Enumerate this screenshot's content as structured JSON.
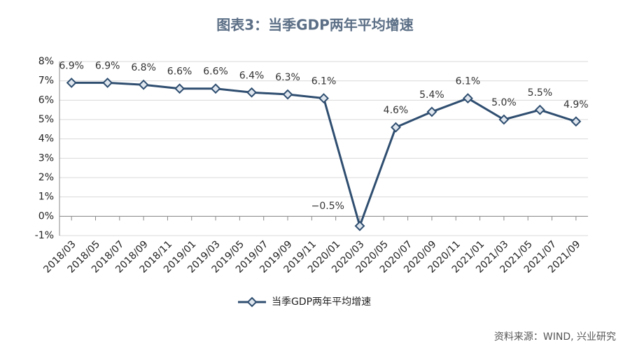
{
  "chart_data": {
    "type": "line",
    "title": "图表3：当季GDP两年平均增速",
    "x": [
      0,
      1.5,
      3,
      4.5,
      6,
      7.5,
      9,
      10.5,
      12,
      13.5,
      15,
      16.5,
      18,
      19.5,
      21
    ],
    "xlim": [
      -0.5,
      21.5
    ],
    "xticks": [
      {
        "value": 0,
        "label": "2018/03"
      },
      {
        "value": 1,
        "label": "2018/05"
      },
      {
        "value": 2,
        "label": "2018/07"
      },
      {
        "value": 3,
        "label": "2018/09"
      },
      {
        "value": 4,
        "label": "2018/11"
      },
      {
        "value": 5,
        "label": "2019/01"
      },
      {
        "value": 6,
        "label": "2019/03"
      },
      {
        "value": 7,
        "label": "2019/05"
      },
      {
        "value": 8,
        "label": "2019/07"
      },
      {
        "value": 9,
        "label": "2019/09"
      },
      {
        "value": 10,
        "label": "2019/11"
      },
      {
        "value": 11,
        "label": "2020/01"
      },
      {
        "value": 12,
        "label": "2020/03"
      },
      {
        "value": 13,
        "label": "2020/05"
      },
      {
        "value": 14,
        "label": "2020/07"
      },
      {
        "value": 15,
        "label": "2020/09"
      },
      {
        "value": 16,
        "label": "2020/11"
      },
      {
        "value": 17,
        "label": "2021/01"
      },
      {
        "value": 18,
        "label": "2021/03"
      },
      {
        "value": 19,
        "label": "2021/05"
      },
      {
        "value": 20,
        "label": "2021/07"
      },
      {
        "value": 21,
        "label": "2021/09"
      }
    ],
    "ylim": [
      -1,
      8
    ],
    "yticks": [
      {
        "value": -1,
        "label": "-1%"
      },
      {
        "value": 0,
        "label": "0%"
      },
      {
        "value": 1,
        "label": "1%"
      },
      {
        "value": 2,
        "label": "2%"
      },
      {
        "value": 3,
        "label": "3%"
      },
      {
        "value": 4,
        "label": "4%"
      },
      {
        "value": 5,
        "label": "5%"
      },
      {
        "value": 6,
        "label": "6%"
      },
      {
        "value": 7,
        "label": "7%"
      },
      {
        "value": 8,
        "label": "8%"
      }
    ],
    "grid": true,
    "legend": "bottom",
    "series": [
      {
        "name": "当季GDP两年平均增速",
        "color": "#2f4e70",
        "values": [
          6.9,
          6.9,
          6.8,
          6.6,
          6.6,
          6.4,
          6.3,
          6.1,
          -0.5,
          4.6,
          5.4,
          6.1,
          5.0,
          5.5,
          4.9
        ],
        "value_labels": [
          "6.9%",
          "6.9%",
          "6.8%",
          "6.6%",
          "6.6%",
          "6.4%",
          "6.3%",
          "6.1%",
          "−0.5%",
          "4.6%",
          "5.4%",
          "6.1%",
          "5.0%",
          "5.5%",
          "4.9%"
        ]
      }
    ],
    "source": "资料来源：WIND, 兴业研究"
  }
}
